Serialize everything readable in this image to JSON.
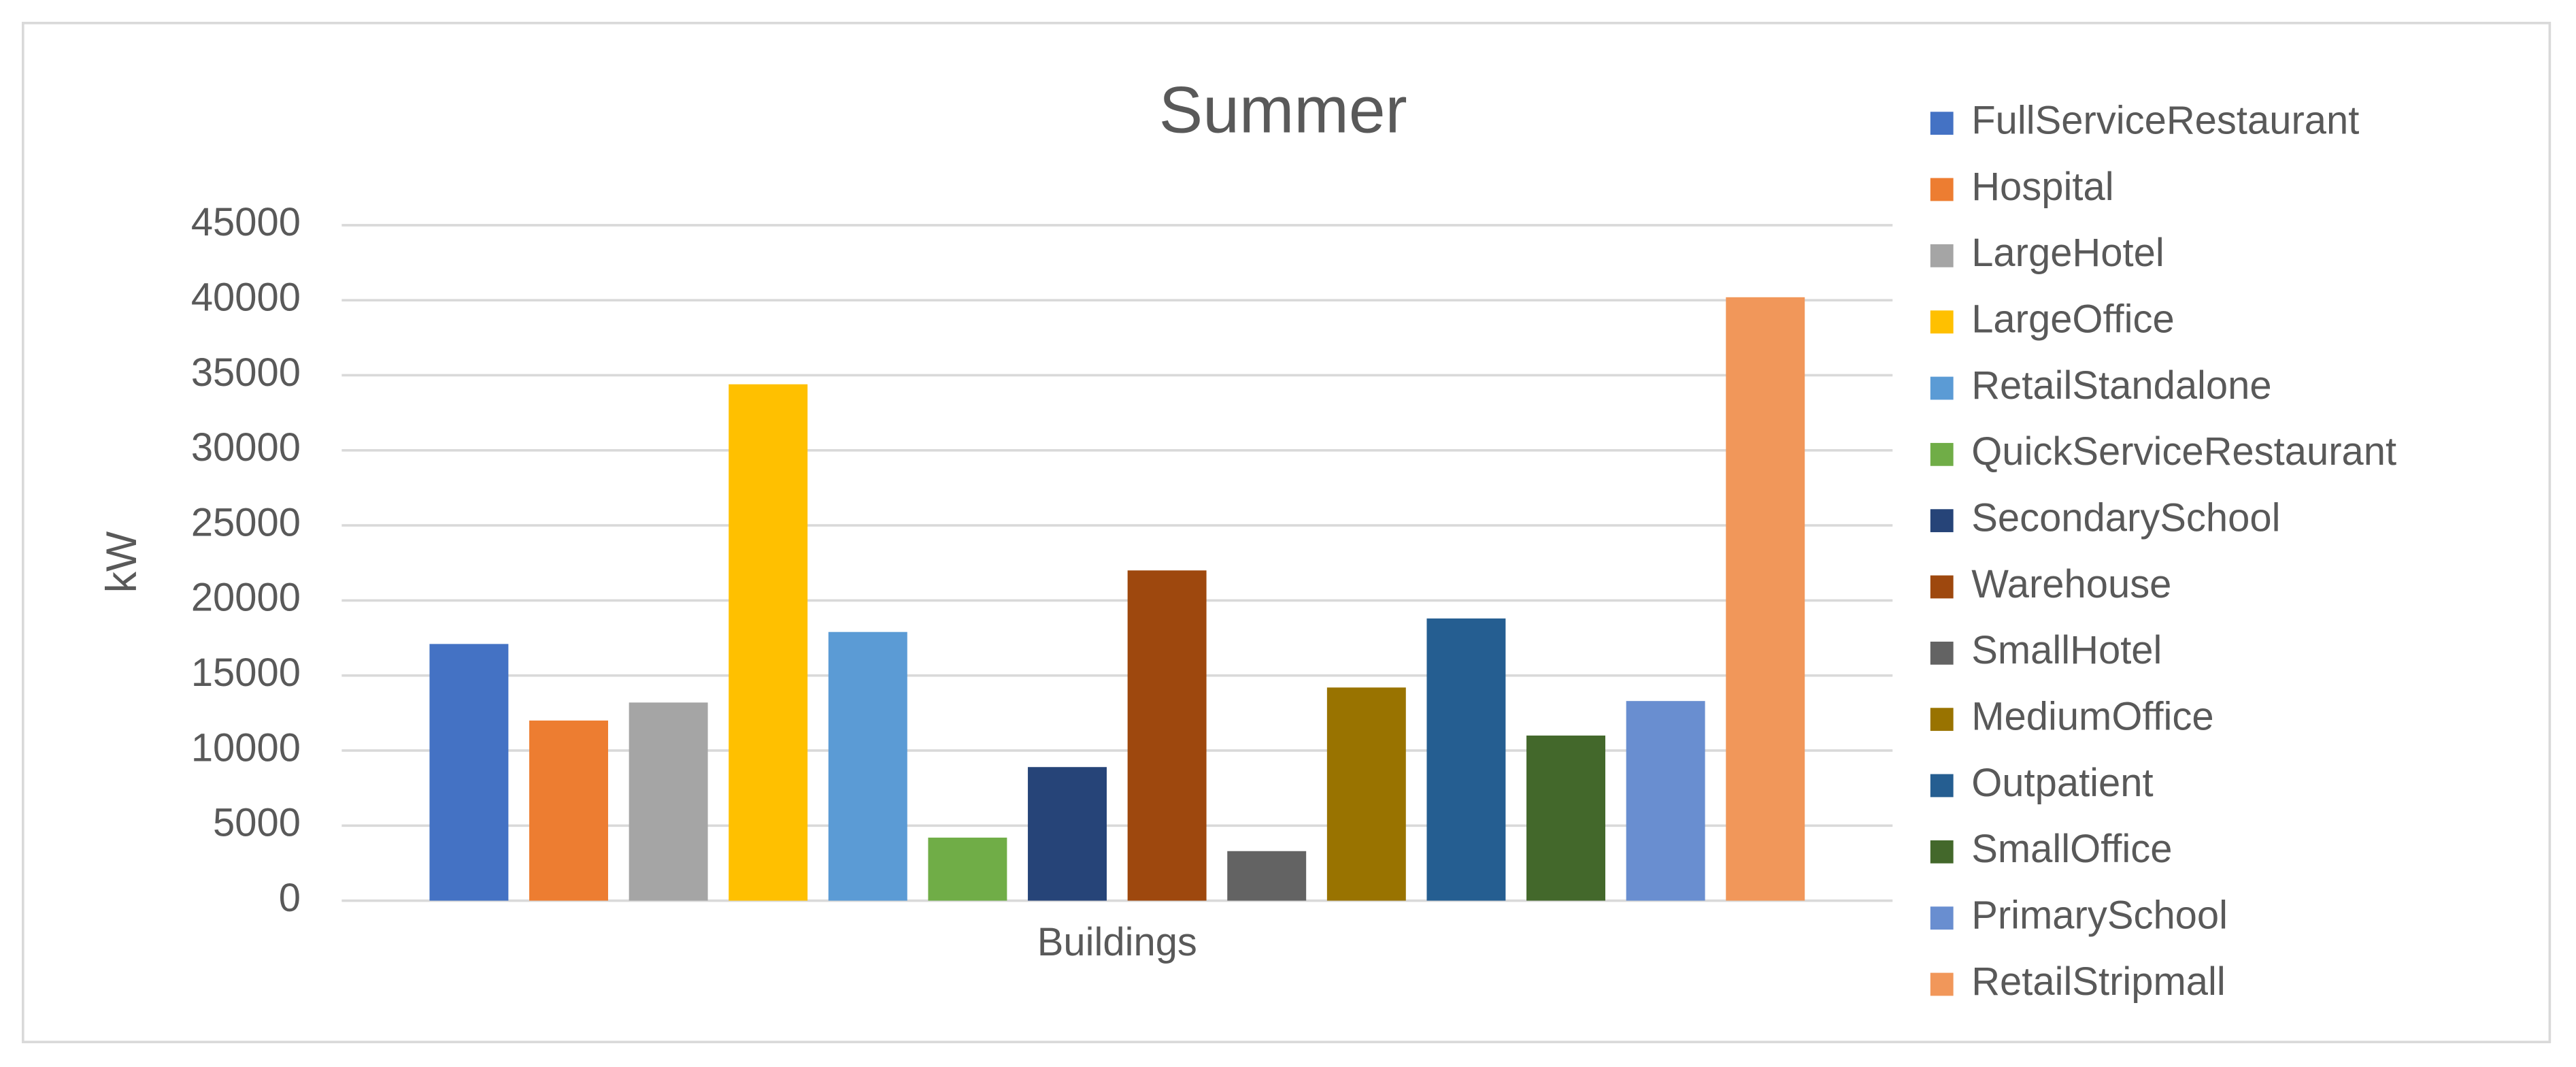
{
  "chart_data": {
    "type": "bar",
    "title": "Summer",
    "y_label": "kW",
    "categories": [
      "Buildings"
    ],
    "series": [
      {
        "name": "FullServiceRestaurant",
        "color": "#4472c4",
        "values": [
          17100
        ]
      },
      {
        "name": "Hospital",
        "color": "#ed7d31",
        "values": [
          12000
        ]
      },
      {
        "name": "LargeHotel",
        "color": "#a5a5a5",
        "values": [
          13200
        ]
      },
      {
        "name": "LargeOffice",
        "color": "#ffc000",
        "values": [
          34400
        ]
      },
      {
        "name": "RetailStandalone",
        "color": "#5b9bd5",
        "values": [
          17900
        ]
      },
      {
        "name": "QuickServiceRestaurant",
        "color": "#70ad47",
        "values": [
          4200
        ]
      },
      {
        "name": "SecondarySchool",
        "color": "#264478",
        "values": [
          8900
        ]
      },
      {
        "name": "Warehouse",
        "color": "#9e480e",
        "values": [
          22000
        ]
      },
      {
        "name": "SmallHotel",
        "color": "#636363",
        "values": [
          3300
        ]
      },
      {
        "name": "MediumOffice",
        "color": "#997300",
        "values": [
          14200
        ]
      },
      {
        "name": "Outpatient",
        "color": "#255e91",
        "values": [
          18800
        ]
      },
      {
        "name": "SmallOffice",
        "color": "#43682b",
        "values": [
          11000
        ]
      },
      {
        "name": "PrimarySchool",
        "color": "#698ed0",
        "values": [
          13300
        ]
      },
      {
        "name": "RetailStripmall",
        "color": "#f1975a",
        "values": [
          40200
        ]
      }
    ],
    "ylim": [
      0,
      45000
    ],
    "yticks": [
      0,
      5000,
      10000,
      15000,
      20000,
      25000,
      30000,
      35000,
      40000,
      45000
    ],
    "grid": true,
    "legend": "right"
  }
}
